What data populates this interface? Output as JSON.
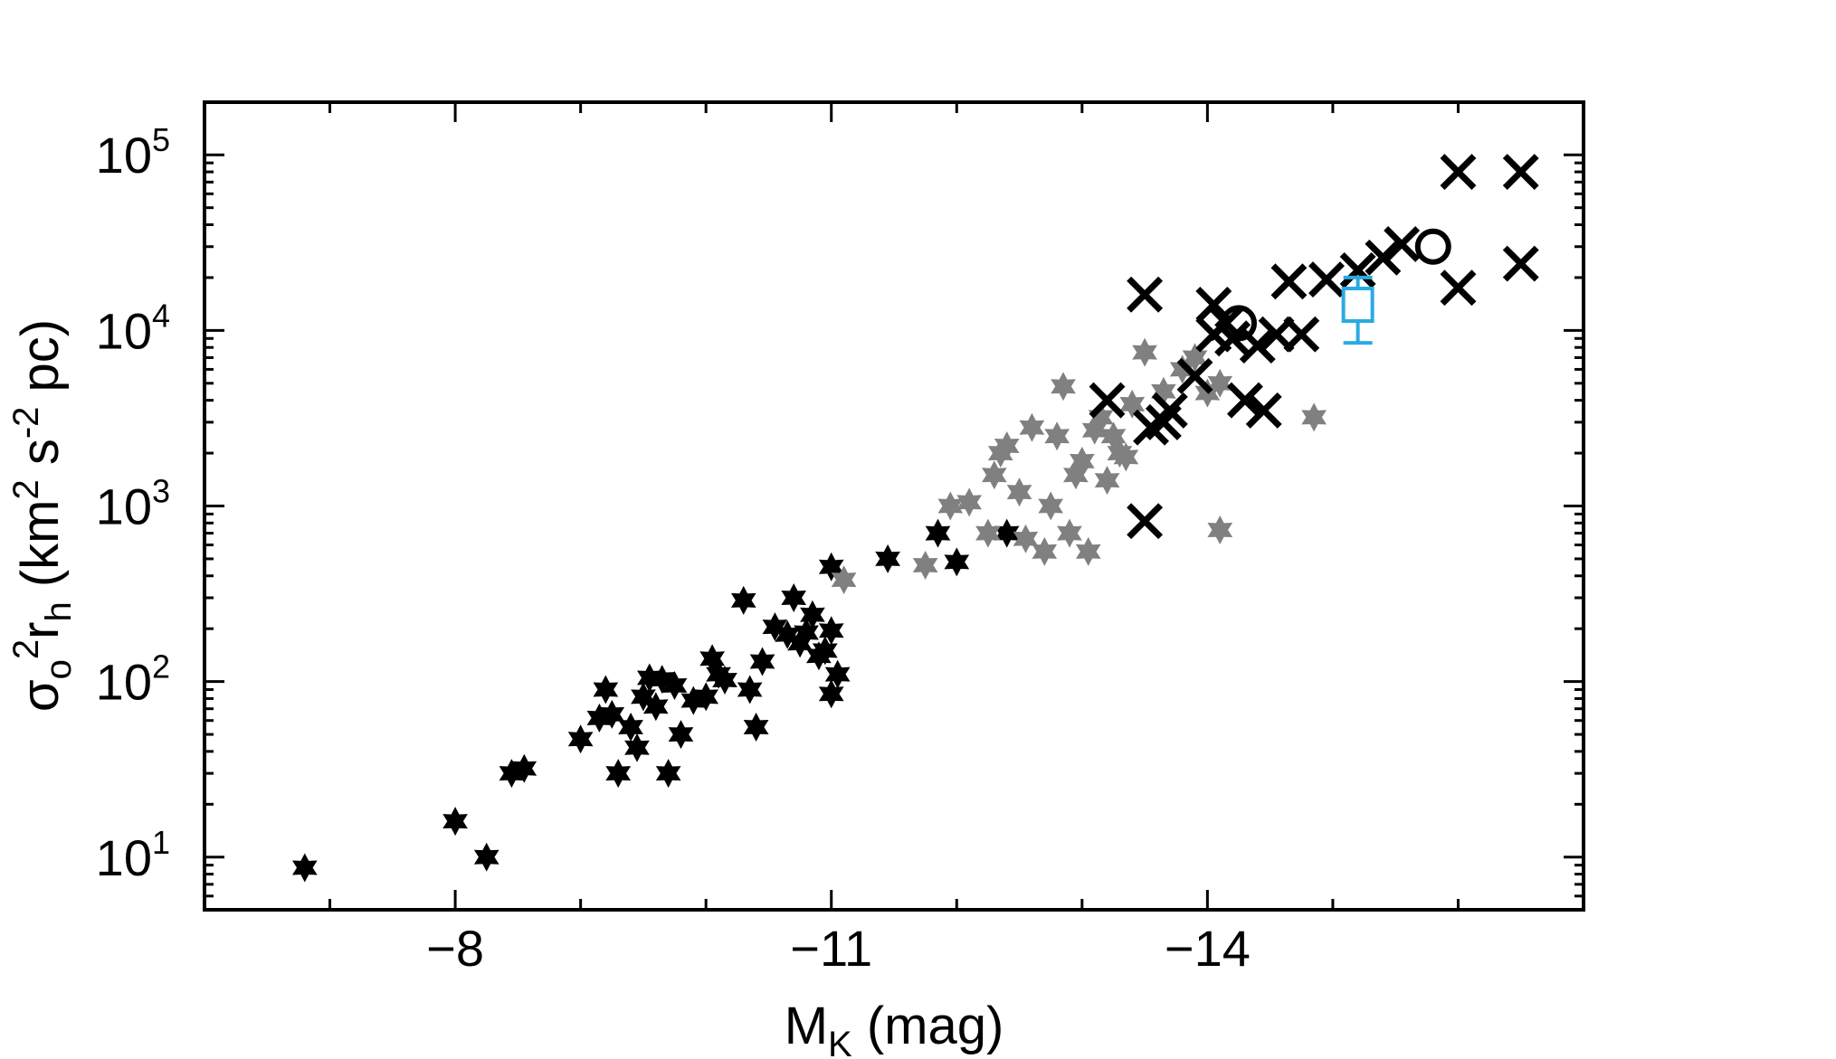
{
  "chart_data": {
    "type": "scatter",
    "xlabel_main": "M",
    "xlabel_sub": "K",
    "xlabel_unit": " (mag)",
    "ylabel": {
      "sigma": "σ",
      "sub_o": "o",
      "sup_2": "2",
      "r": "r",
      "sub_h": "h",
      "open": " (km",
      "sup_km": "2",
      "s": " s",
      "sup_s": "-2",
      "pc": " pc)"
    },
    "xlim": [
      -6,
      -17
    ],
    "ylim_log10": [
      0.7,
      5.3
    ],
    "x_ticks": [
      {
        "value": -8,
        "label": "−8"
      },
      {
        "value": -11,
        "label": "−11"
      },
      {
        "value": -14,
        "label": "−14"
      }
    ],
    "y_ticks": [
      {
        "exp": 1,
        "base": "10",
        "sup": "1"
      },
      {
        "exp": 2,
        "base": "10",
        "sup": "2"
      },
      {
        "exp": 3,
        "base": "10",
        "sup": "3"
      },
      {
        "exp": 4,
        "base": "10",
        "sup": "4"
      },
      {
        "exp": 5,
        "base": "10",
        "sup": "5"
      }
    ],
    "series": [
      {
        "name": "black stars",
        "marker": "star",
        "color": "#000000",
        "points": [
          [
            -6.8,
            8.7
          ],
          [
            -8.0,
            16
          ],
          [
            -8.25,
            10
          ],
          [
            -8.45,
            30
          ],
          [
            -8.55,
            32
          ],
          [
            -9.0,
            47
          ],
          [
            -9.15,
            62
          ],
          [
            -9.2,
            90
          ],
          [
            -9.25,
            65
          ],
          [
            -9.3,
            30
          ],
          [
            -9.4,
            55
          ],
          [
            -9.45,
            42
          ],
          [
            -9.5,
            82
          ],
          [
            -9.55,
            105
          ],
          [
            -9.6,
            72
          ],
          [
            -9.65,
            103
          ],
          [
            -9.7,
            30
          ],
          [
            -9.75,
            95
          ],
          [
            -9.8,
            50
          ],
          [
            -9.9,
            78
          ],
          [
            -10.0,
            82
          ],
          [
            -10.05,
            135
          ],
          [
            -10.1,
            110
          ],
          [
            -10.15,
            102
          ],
          [
            -10.3,
            290
          ],
          [
            -10.35,
            90
          ],
          [
            -10.4,
            55
          ],
          [
            -10.45,
            130
          ],
          [
            -10.55,
            205
          ],
          [
            -10.65,
            185
          ],
          [
            -10.7,
            300
          ],
          [
            -10.75,
            165
          ],
          [
            -10.8,
            190
          ],
          [
            -10.85,
            240
          ],
          [
            -10.9,
            140
          ],
          [
            -10.95,
            150
          ],
          [
            -11.0,
            85
          ],
          [
            -11.0,
            195
          ],
          [
            -11.05,
            110
          ],
          [
            -11.0,
            450
          ],
          [
            -11.45,
            500
          ],
          [
            -11.85,
            700
          ],
          [
            -12.0,
            480
          ],
          [
            -12.4,
            700
          ]
        ]
      },
      {
        "name": "grey stars",
        "marker": "star",
        "color": "#808080",
        "points": [
          [
            -11.1,
            380
          ],
          [
            -11.75,
            460
          ],
          [
            -11.95,
            1000
          ],
          [
            -12.1,
            1050
          ],
          [
            -12.25,
            700
          ],
          [
            -12.3,
            1500
          ],
          [
            -12.35,
            2000
          ],
          [
            -12.4,
            2200
          ],
          [
            -12.5,
            1200
          ],
          [
            -12.55,
            650
          ],
          [
            -12.6,
            2800
          ],
          [
            -12.7,
            550
          ],
          [
            -12.75,
            1000
          ],
          [
            -12.8,
            2500
          ],
          [
            -12.85,
            4800
          ],
          [
            -12.9,
            700
          ],
          [
            -12.95,
            1500
          ],
          [
            -13.0,
            1800
          ],
          [
            -13.05,
            550
          ],
          [
            -13.1,
            2700
          ],
          [
            -13.15,
            3200
          ],
          [
            -13.2,
            1400
          ],
          [
            -13.25,
            2500
          ],
          [
            -13.3,
            2000
          ],
          [
            -13.35,
            1900
          ],
          [
            -13.4,
            3800
          ],
          [
            -13.5,
            7500
          ],
          [
            -13.65,
            4500
          ],
          [
            -13.8,
            6000
          ],
          [
            -13.9,
            7000
          ],
          [
            -14.0,
            4400
          ],
          [
            -14.1,
            5000
          ],
          [
            -14.1,
            730
          ],
          [
            -14.85,
            3200
          ]
        ]
      },
      {
        "name": "crosses",
        "marker": "cross",
        "color": "#000000",
        "points": [
          [
            -13.2,
            4000
          ],
          [
            -13.5,
            16000
          ],
          [
            -13.5,
            820
          ],
          [
            -13.55,
            2800
          ],
          [
            -13.65,
            3000
          ],
          [
            -13.7,
            3500
          ],
          [
            -13.9,
            5500
          ],
          [
            -14.05,
            14000
          ],
          [
            -14.05,
            9500
          ],
          [
            -14.15,
            11000
          ],
          [
            -14.2,
            9000
          ],
          [
            -14.3,
            4000
          ],
          [
            -14.4,
            8200
          ],
          [
            -14.45,
            3500
          ],
          [
            -14.55,
            9500
          ],
          [
            -14.65,
            19000
          ],
          [
            -14.75,
            9500
          ],
          [
            -14.95,
            19500
          ],
          [
            -15.2,
            22000
          ],
          [
            -15.4,
            26000
          ],
          [
            -15.55,
            31000
          ],
          [
            -16.0,
            80000
          ],
          [
            -16.0,
            17500
          ],
          [
            -16.5,
            80000
          ],
          [
            -16.5,
            24000
          ]
        ]
      },
      {
        "name": "open circles",
        "marker": "circle",
        "color": "#000000",
        "points": [
          [
            -14.25,
            11000
          ],
          [
            -15.8,
            30000
          ]
        ]
      },
      {
        "name": "cyan square",
        "marker": "square-errorbar",
        "color": "#29abe2",
        "points": [
          {
            "x": -15.2,
            "y": 14000,
            "ylo": 8500,
            "yhi": 20000
          }
        ]
      }
    ]
  }
}
